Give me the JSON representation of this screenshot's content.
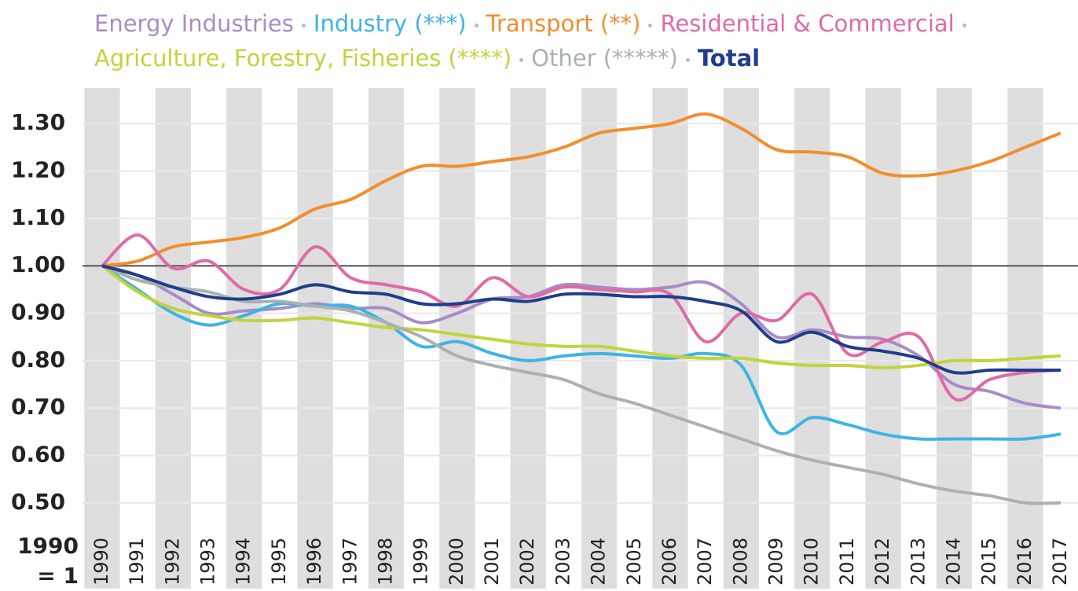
{
  "chart_data": {
    "type": "line",
    "annotation": "1990\n= 1",
    "categories": [
      "1990",
      "1991",
      "1992",
      "1993",
      "1994",
      "1995",
      "1996",
      "1997",
      "1998",
      "1999",
      "2000",
      "2001",
      "2002",
      "2003",
      "2004",
      "2005",
      "2006",
      "2007",
      "2008",
      "2009",
      "2010",
      "2011",
      "2012",
      "2013",
      "2014",
      "2015",
      "2016",
      "2017"
    ],
    "ylim": [
      0.47,
      1.375
    ],
    "yticks": [
      {
        "value": 0.5,
        "label": "0.50"
      },
      {
        "value": 0.6,
        "label": "0.60"
      },
      {
        "value": 0.7,
        "label": "0.70"
      },
      {
        "value": 0.8,
        "label": "0.80"
      },
      {
        "value": 0.9,
        "label": "0.90"
      },
      {
        "value": 1.0,
        "label": "1.00"
      },
      {
        "value": 1.1,
        "label": "1.10"
      },
      {
        "value": 1.2,
        "label": "1.20"
      },
      {
        "value": 1.3,
        "label": "1.30"
      }
    ],
    "grid": true,
    "baseline": 1,
    "smooth": true,
    "series": [
      {
        "name": "Energy Industries",
        "color": "#a98bc7",
        "values": [
          1.0,
          0.98,
          0.94,
          0.9,
          0.905,
          0.91,
          0.92,
          0.91,
          0.91,
          0.88,
          0.9,
          0.93,
          0.935,
          0.96,
          0.955,
          0.95,
          0.955,
          0.965,
          0.92,
          0.85,
          0.865,
          0.85,
          0.845,
          0.81,
          0.75,
          0.735,
          0.71,
          0.7
        ]
      },
      {
        "name": "Industry (***)",
        "color": "#3fb3e6",
        "values": [
          1.0,
          0.95,
          0.9,
          0.875,
          0.895,
          0.92,
          0.915,
          0.915,
          0.88,
          0.83,
          0.84,
          0.815,
          0.8,
          0.81,
          0.815,
          0.81,
          0.805,
          0.815,
          0.79,
          0.65,
          0.68,
          0.665,
          0.645,
          0.635,
          0.635,
          0.635,
          0.635,
          0.645
        ]
      },
      {
        "name": "Transport (**)",
        "color": "#f28e2e",
        "values": [
          1.0,
          1.01,
          1.04,
          1.05,
          1.06,
          1.08,
          1.12,
          1.14,
          1.18,
          1.21,
          1.21,
          1.22,
          1.23,
          1.25,
          1.28,
          1.29,
          1.3,
          1.32,
          1.29,
          1.245,
          1.24,
          1.23,
          1.195,
          1.19,
          1.2,
          1.22,
          1.25,
          1.28
        ]
      },
      {
        "name": "Residential & Commercial",
        "color": "#e06aa6",
        "values": [
          1.0,
          1.065,
          0.995,
          1.01,
          0.95,
          0.95,
          1.04,
          0.975,
          0.96,
          0.945,
          0.915,
          0.975,
          0.935,
          0.955,
          0.95,
          0.945,
          0.94,
          0.84,
          0.9,
          0.885,
          0.94,
          0.815,
          0.84,
          0.85,
          0.72,
          0.76,
          0.775,
          0.78
        ]
      },
      {
        "name": "Agriculture, Forestry, Fisheries (****)",
        "color": "#c2d43a",
        "values": [
          1.0,
          0.945,
          0.91,
          0.895,
          0.885,
          0.885,
          0.89,
          0.88,
          0.87,
          0.865,
          0.855,
          0.845,
          0.835,
          0.83,
          0.83,
          0.82,
          0.81,
          0.805,
          0.805,
          0.795,
          0.79,
          0.79,
          0.785,
          0.79,
          0.8,
          0.8,
          0.805,
          0.81
        ]
      },
      {
        "name": "Other (*****)",
        "color": "#a9b1b1",
        "values": [
          1.0,
          0.97,
          0.955,
          0.945,
          0.925,
          0.925,
          0.915,
          0.905,
          0.88,
          0.85,
          0.81,
          0.79,
          0.775,
          0.76,
          0.73,
          0.71,
          0.685,
          0.66,
          0.635,
          0.61,
          0.59,
          0.575,
          0.56,
          0.54,
          0.525,
          0.515,
          0.5,
          0.5
        ]
      },
      {
        "name": "Total",
        "color": "#1f3d8c",
        "values": [
          1.0,
          0.98,
          0.955,
          0.935,
          0.93,
          0.94,
          0.96,
          0.945,
          0.94,
          0.92,
          0.92,
          0.93,
          0.925,
          0.94,
          0.94,
          0.935,
          0.935,
          0.925,
          0.905,
          0.84,
          0.86,
          0.83,
          0.82,
          0.805,
          0.775,
          0.78,
          0.78,
          0.78
        ]
      }
    ]
  }
}
